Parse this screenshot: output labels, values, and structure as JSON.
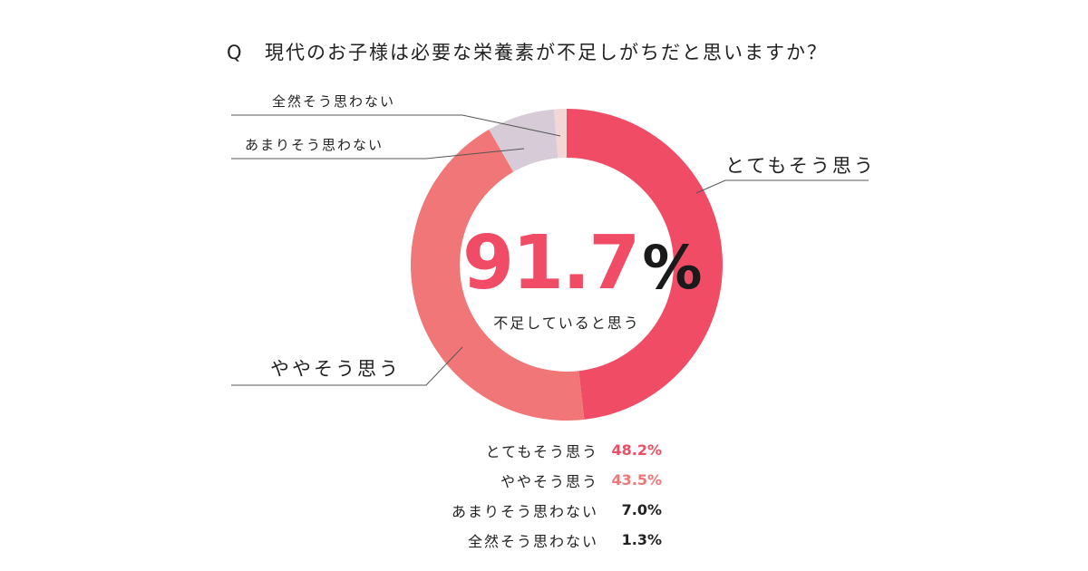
{
  "question": {
    "mark": "Q",
    "text": "現代のお子様は必要な栄養素が不足しがちだと思いますか？"
  },
  "center": {
    "value": "91.7",
    "unit": "%",
    "caption": "不足していると思う"
  },
  "callouts": {
    "very": "とてもそう思う",
    "somewhat": "ややそう思う",
    "not_much": "あまりそう思わない",
    "not_at_all": "全然そう思わない"
  },
  "colors": {
    "very": "#f04c66",
    "somewhat": "#f07677",
    "not_much": "#d6cbd7",
    "not_at_all": "#f3d6d6",
    "legend_value_dark": "#222222"
  },
  "chart_data": {
    "type": "pie",
    "title": "現代のお子様は必要な栄養素が不足しがちだと思いますか？",
    "categories": [
      "とてもそう思う",
      "ややそう思う",
      "あまりそう思わない",
      "全然そう思わない"
    ],
    "values": [
      48.2,
      43.5,
      7.0,
      1.3
    ],
    "value_labels": [
      "48.2%",
      "43.5%",
      "7.0%",
      "1.3%"
    ],
    "donut": true,
    "start": "top",
    "direction": "clockwise"
  }
}
